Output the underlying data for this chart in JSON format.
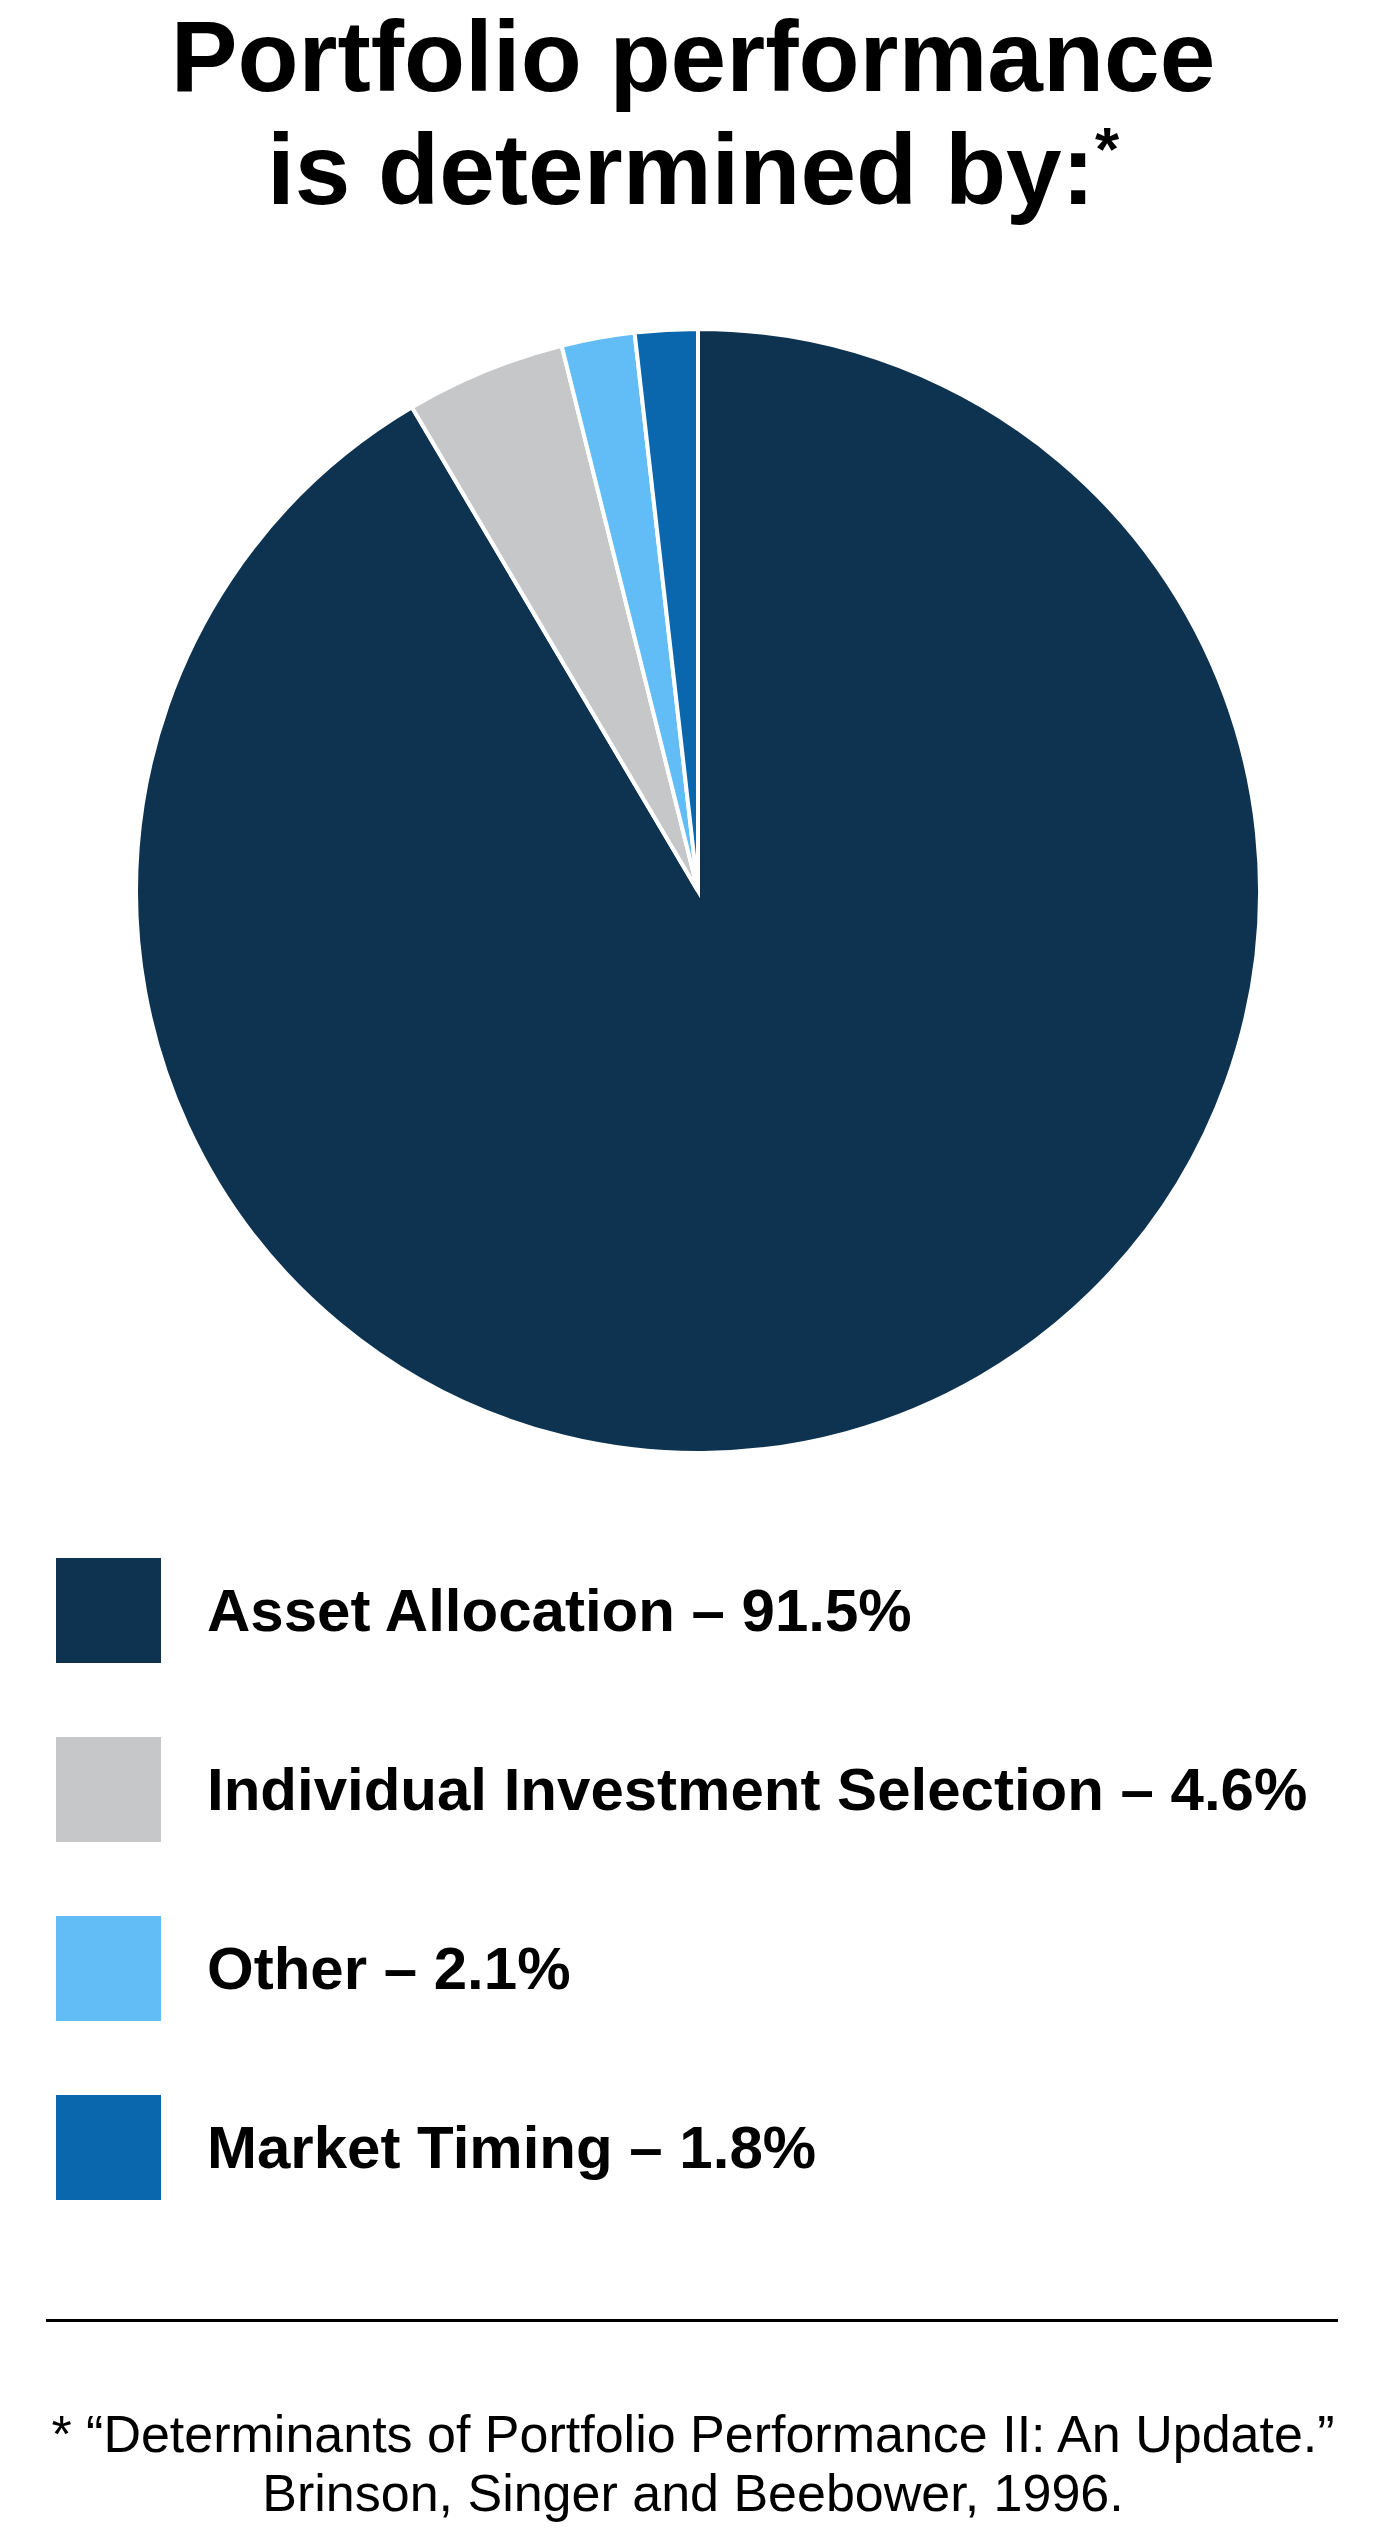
{
  "chart_data": {
    "type": "pie",
    "title": "Portfolio performance\nis determined by:$^{*}$",
    "categories": [
      "Asset Allocation – 91.5%",
      "Individual Investment Selection – 4.6%",
      "Other – 2.1%",
      "Market Timing – 1.8%"
    ],
    "values": [
      91.5,
      4.6,
      2.1,
      1.8
    ],
    "colors": [
      "#0d3351",
      "#c6c7c9",
      "#62bdf6",
      "#0a67ad"
    ],
    "legend": "bottom",
    "annotations": [
      "* “Determinants of Portfolio Performance II: An Update.”\nBrinson, Singer and Beebower, 1996."
    ]
  }
}
